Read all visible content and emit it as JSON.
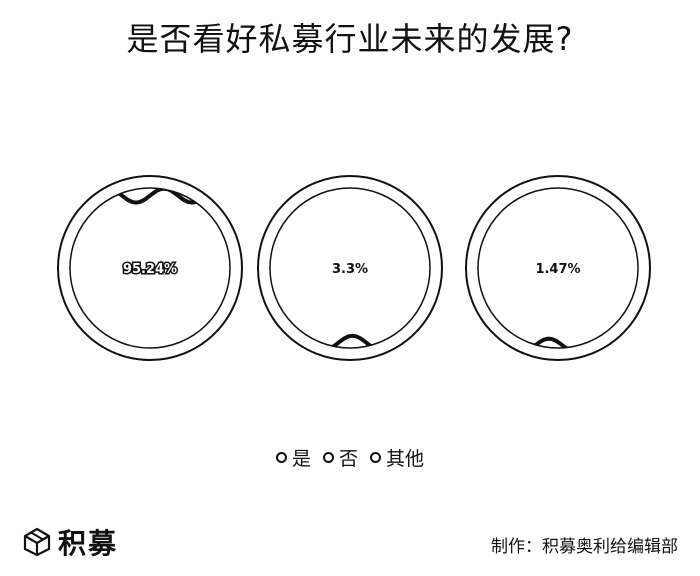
{
  "title": "是否看好私募行业未来的发展?",
  "chart_data": {
    "type": "liquid-fill",
    "title": "是否看好私募行业未来的发展?",
    "series": [
      {
        "name": "是",
        "value": 95.24,
        "label": "95.24%"
      },
      {
        "name": "否",
        "value": 3.3,
        "label": "3.3%"
      },
      {
        "name": "其他",
        "value": 1.47,
        "label": "1.47%"
      }
    ],
    "legend": {
      "position": "bottom-center",
      "items": [
        "是",
        "否",
        "其他"
      ]
    },
    "colors": {
      "stroke": "#111111",
      "fill": "#ffffff",
      "background": "#ffffff"
    }
  },
  "brand": {
    "name": "积募",
    "logo_icon": "box-logo-icon"
  },
  "credit": "制作：积募奥利给编辑部"
}
